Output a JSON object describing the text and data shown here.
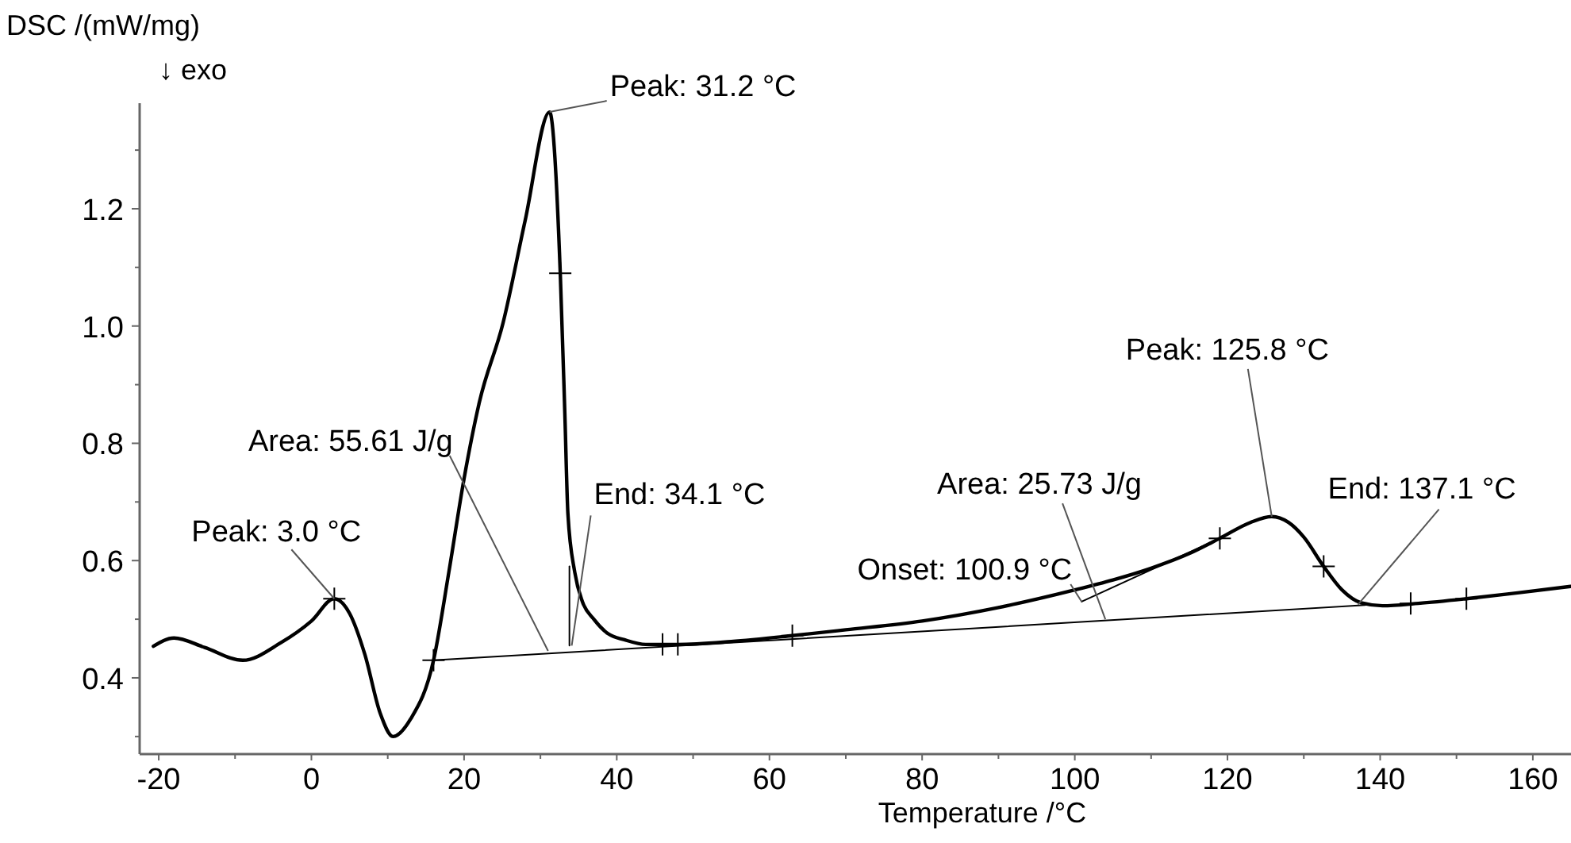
{
  "chart_data": {
    "type": "line",
    "xlabel": "Temperature /°C",
    "ylabel": "DSC /(mW/mg)",
    "xlim": [
      -22.5,
      165
    ],
    "ylim": [
      0.27,
      1.38
    ],
    "xticks": [
      -20,
      {
        "value": -10,
        "label": null
      },
      0,
      {
        "value": 10,
        "label": null
      },
      20,
      {
        "value": 30,
        "label": null
      },
      40,
      {
        "value": 50,
        "label": null
      },
      60,
      {
        "value": 70,
        "label": null
      },
      80,
      {
        "value": 90,
        "label": null
      },
      100,
      {
        "value": 110,
        "label": null
      },
      120,
      {
        "value": 130,
        "label": null
      },
      140,
      {
        "value": 150,
        "label": null
      },
      160
    ],
    "yticks": [
      {
        "value": 0.3,
        "label": null
      },
      {
        "value": 0.4,
        "label": "0.4"
      },
      {
        "value": 0.5,
        "label": null
      },
      {
        "value": 0.6,
        "label": "0.6"
      },
      {
        "value": 0.7,
        "label": null
      },
      {
        "value": 0.8,
        "label": "0.8"
      },
      {
        "value": 0.9,
        "label": null
      },
      {
        "value": 1.0,
        "label": "1.0"
      },
      {
        "value": 1.1,
        "label": null
      },
      {
        "value": 1.2,
        "label": "1.2"
      },
      {
        "value": 1.3,
        "label": null
      }
    ],
    "grid": false,
    "marker": "none",
    "line_style": "solid",
    "series": [
      {
        "color": "#000000",
        "x": [
          -20.7,
          -18,
          -14,
          -9,
          -4,
          0,
          3,
          5,
          7,
          9,
          10.7,
          13,
          16,
          18,
          20,
          22,
          25.1,
          28,
          31.2,
          32.6,
          33.2,
          33.6,
          34.5,
          35.5,
          37,
          38.9,
          41,
          43.8,
          48,
          55,
          63,
          70,
          80,
          90,
          100,
          105,
          110,
          115,
          119,
          123,
          125.8,
          128,
          130,
          132.6,
          135,
          137.5,
          140.3,
          145,
          151.3,
          158,
          165
        ],
        "values": [
          0.454,
          0.468,
          0.452,
          0.43,
          0.46,
          0.497,
          0.535,
          0.51,
          0.44,
          0.34,
          0.3,
          0.33,
          0.43,
          0.58,
          0.74,
          0.87,
          1.005,
          1.18,
          1.365,
          1.09,
          0.85,
          0.68,
          0.58,
          0.53,
          0.5,
          0.475,
          0.465,
          0.457,
          0.457,
          0.462,
          0.472,
          0.482,
          0.497,
          0.52,
          0.55,
          0.567,
          0.587,
          0.612,
          0.638,
          0.665,
          0.675,
          0.665,
          0.64,
          0.59,
          0.55,
          0.528,
          0.523,
          0.527,
          0.535,
          0.545,
          0.556
        ]
      },
      {
        "color": "#000000",
        "x": [
          16,
          138
        ],
        "values": [
          0.43,
          0.524
        ]
      },
      {
        "color": "#000000",
        "x": [
          33.8,
          33.8
        ],
        "values": [
          0.455,
          0.59
        ]
      },
      {
        "color": "#000000",
        "x": [
          100.9,
          118
        ],
        "values": [
          0.53,
          0.632
        ]
      },
      {
        "type": "scatter",
        "marker": "cross",
        "color": "#000000",
        "x": [
          3,
          16,
          32.6,
          46,
          48,
          63,
          119,
          132.6,
          144,
          151.3
        ],
        "values": [
          0.535,
          0.43,
          1.09,
          0.457,
          0.457,
          0.472,
          0.638,
          0.59,
          0.527,
          0.535
        ]
      }
    ],
    "annotations": [
      "↓ exo",
      {
        "text": "Peak: 31.2 °C",
        "x": 31.2,
        "y": 1.365
      },
      {
        "text": "Peak: 3.0 °C",
        "x": 3.0,
        "y": 0.535
      },
      {
        "text": "Area: 55.61 J/g",
        "x": 31,
        "y": 0.446
      },
      {
        "text": "End: 34.1 °C",
        "x": 34.1,
        "y": 0.455
      },
      {
        "text": "Onset: 100.9 °C",
        "x": 100.9,
        "y": 0.53
      },
      {
        "text": "Area: 25.73 J/g",
        "x": 104,
        "y": 0.5
      },
      {
        "text": "Peak: 125.8 °C",
        "x": 125.8,
        "y": 0.675
      },
      {
        "text": "End: 137.1 °C",
        "x": 137.1,
        "y": 0.525
      }
    ]
  }
}
